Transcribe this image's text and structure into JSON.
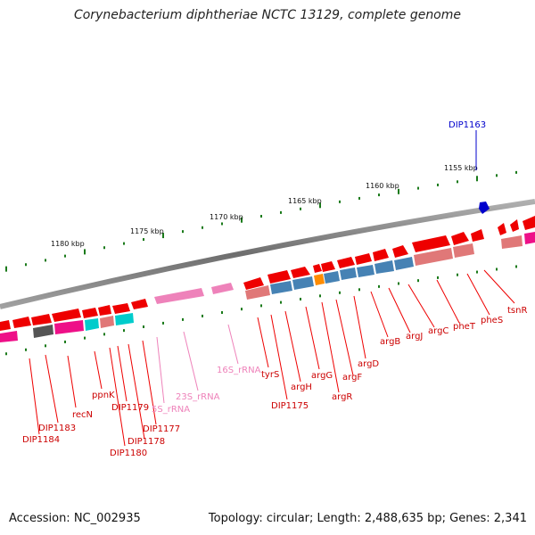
{
  "title": "Corynebacterium diphtheriae NCTC 13129, complete genome",
  "footer": {
    "accession": "Accession: NC_002935",
    "topology": "Topology: circular; Length: 2,488,635 bp; Genes: 2,341"
  },
  "ticks": [
    "1155 kbp",
    "1160 kbp",
    "1165 kbp",
    "1170 kbp",
    "1175 kbp",
    "1180 kbp"
  ],
  "highlight_label": "DIP1163",
  "feature_labels": [
    "tsnR",
    "pheS",
    "pheT",
    "argC",
    "argJ",
    "argB",
    "argD",
    "argF",
    "argR",
    "argG",
    "argH",
    "DIP1175",
    "tyrS",
    "16S_rRNA",
    "23S_rRNA",
    "5S_rRNA",
    "DIP1177",
    "DIP1178",
    "DIP1179",
    "DIP1180",
    "ppnK",
    "recN",
    "DIP1183",
    "DIP1184"
  ],
  "colors": {
    "cds": "#ee0000",
    "rrna": "#ee82ba",
    "backbone": "#808080",
    "tick": "#1a7a1a",
    "highlight": "#0000cc",
    "cog_blue": "#4682b4",
    "cog_salmon": "#e07878",
    "cog_magenta": "#ee1088",
    "cog_cyan": "#00cccc",
    "cog_orange": "#ff8c00",
    "cog_gray": "#555555",
    "cog_lightpink": "#f0a0c0"
  }
}
